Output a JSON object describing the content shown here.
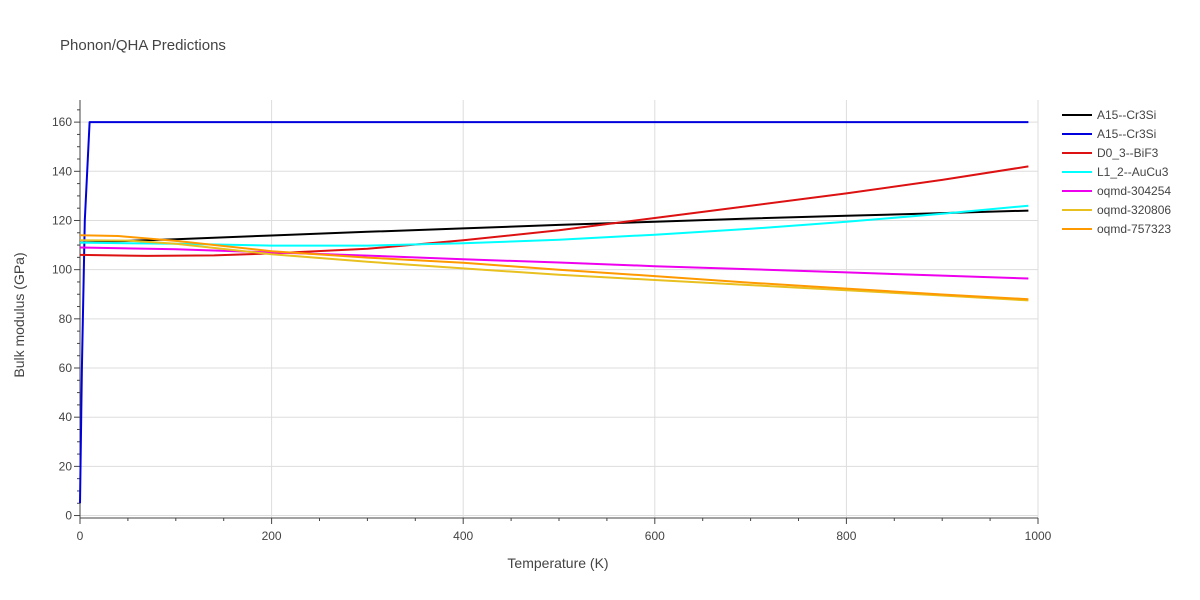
{
  "chart_data": {
    "type": "line",
    "title": "Phonon/QHA Predictions",
    "xlabel": "Temperature (K)",
    "ylabel": "Bulk modulus (GPa)",
    "xlim": [
      0,
      1000
    ],
    "ylim": [
      -1,
      169
    ],
    "xticks": [
      0,
      200,
      400,
      600,
      800,
      1000
    ],
    "yticks": [
      0,
      20,
      40,
      60,
      80,
      100,
      120,
      140,
      160
    ],
    "grid": true,
    "legend_position": "right",
    "series": [
      {
        "name": "A15--Cr3Si",
        "color": "#000000",
        "x": [
          0,
          100,
          200,
          300,
          400,
          500,
          600,
          700,
          800,
          900,
          990
        ],
        "y": [
          111,
          112.4,
          113.9,
          115.4,
          116.8,
          118.2,
          119.5,
          120.8,
          121.9,
          123,
          124
        ]
      },
      {
        "name": "A15--Cr3Si",
        "color": "#0000dd",
        "x": [
          0,
          2,
          5,
          10,
          20,
          100,
          400,
          700,
          990
        ],
        "y": [
          5,
          60,
          120,
          160,
          160,
          160,
          160,
          160,
          160
        ]
      },
      {
        "name": "D0_3--BiF3",
        "color": "#dd1111",
        "x": [
          0,
          70,
          140,
          200,
          300,
          400,
          500,
          600,
          700,
          800,
          900,
          990
        ],
        "y": [
          106,
          105.6,
          105.8,
          106.6,
          108.5,
          112,
          116,
          121,
          126,
          131,
          136.5,
          142
        ]
      },
      {
        "name": "L1_2--AuCu3",
        "color": "#00ffff",
        "x": [
          0,
          100,
          200,
          300,
          400,
          500,
          600,
          700,
          800,
          900,
          990
        ],
        "y": [
          111,
          110.5,
          109.8,
          109.8,
          110.7,
          112.2,
          114.2,
          116.6,
          119.5,
          122.7,
          126
        ]
      },
      {
        "name": "oqmd-304254",
        "color": "#ee00ee",
        "x": [
          0,
          100,
          200,
          300,
          400,
          500,
          600,
          700,
          800,
          900,
          990
        ],
        "y": [
          109,
          108.3,
          107,
          105.7,
          104.2,
          102.9,
          101.4,
          100.2,
          98.9,
          97.6,
          96.4
        ]
      },
      {
        "name": "oqmd-320806",
        "color": "#e8c020",
        "x": [
          0,
          50,
          100,
          200,
          300,
          400,
          500,
          600,
          700,
          800,
          900,
          990
        ],
        "y": [
          112,
          111.8,
          110.5,
          106.3,
          103.2,
          100.5,
          97.9,
          95.8,
          93.7,
          91.6,
          89.5,
          87.5
        ]
      },
      {
        "name": "oqmd-757323",
        "color": "#ff9900",
        "x": [
          0,
          40,
          100,
          200,
          300,
          400,
          500,
          600,
          700,
          800,
          900,
          990
        ],
        "y": [
          114,
          113.7,
          111.7,
          107.5,
          104.9,
          102.8,
          100,
          97.4,
          94.7,
          92.3,
          89.9,
          88
        ]
      }
    ]
  }
}
